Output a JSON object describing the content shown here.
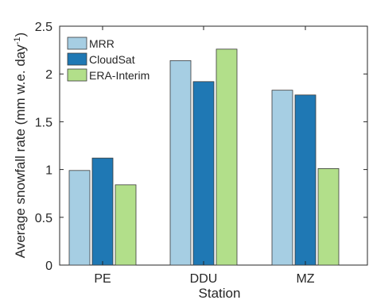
{
  "chart_data": {
    "type": "bar",
    "xlabel": "Station",
    "ylabel": "Average snowfall rate (mm w.e. day",
    "ylabel_superscript": "-1",
    "ylabel_suffix": ")",
    "categories": [
      "PE",
      "DDU",
      "MZ"
    ],
    "series": [
      {
        "name": "MRR",
        "values": [
          0.99,
          2.14,
          1.83
        ],
        "color": "#a6cee3"
      },
      {
        "name": "CloudSat",
        "values": [
          1.12,
          1.92,
          1.78
        ],
        "color": "#1f78b4"
      },
      {
        "name": "ERA-Interim",
        "values": [
          0.84,
          2.26,
          1.01
        ],
        "color": "#b2df8a"
      }
    ],
    "ylim": [
      0,
      2.5
    ],
    "yticks": [
      "0",
      "0.5",
      "1",
      "1.5",
      "2",
      "2.5"
    ],
    "grid": false,
    "legend_position": "top-left"
  }
}
